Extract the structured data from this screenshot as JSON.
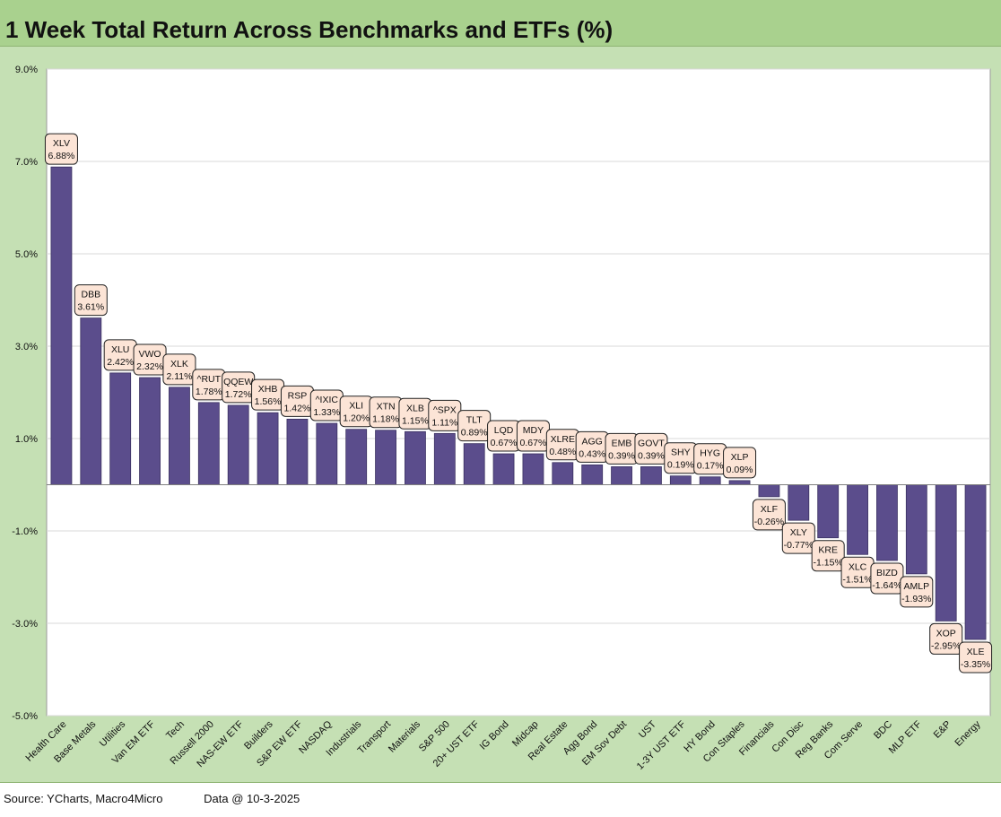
{
  "header": {
    "title": "1 Week Total Return Across Benchmarks and ETFs (%)"
  },
  "footer": {
    "source": "Source: YCharts, Macro4Micro",
    "data_as_of": "Data @ 10-3-2025"
  },
  "colors": {
    "bar": "#5b4d8c",
    "label_bg": "#fce4d6",
    "panel": "#c5e0b4",
    "title_bg": "#a9d18e"
  },
  "chart_data": {
    "type": "bar",
    "title": "1 Week Total Return Across Benchmarks and ETFs (%)",
    "xlabel": "",
    "ylabel": "",
    "ylim": [
      -5.0,
      9.0
    ],
    "ytick_values": [
      9.0,
      7.0,
      5.0,
      3.0,
      1.0,
      -1.0,
      -3.0,
      -5.0
    ],
    "ytick_labels": [
      "9.0%",
      "7.0%",
      "5.0%",
      "3.0%",
      "1.0%",
      "-1.0%",
      "-3.0%",
      "-5.0%"
    ],
    "grid": true,
    "categories": [
      "Health Care",
      "Base Metals",
      "Utilities",
      "Van EM ETF",
      "Tech",
      "Russell 2000",
      "NAS-EW ETF",
      "Builders",
      "S&P EW ETF",
      "NASDAQ",
      "Industrials",
      "Transport",
      "Materials",
      "S&P 500",
      "20+ UST ETF",
      "IG Bond",
      "Midcap",
      "Real Estate",
      "Agg Bond",
      "EM Sov Debt",
      "UST",
      "1-3Y UST ETF",
      "HY Bond",
      "Con Staples",
      "Financials",
      "Con Disc",
      "Reg Banks",
      "Com Serve",
      "BDC",
      "MLP ETF",
      "E&P",
      "Energy"
    ],
    "tickers": [
      "XLV",
      "DBB",
      "XLU",
      "VWO",
      "XLK",
      "^RUT",
      "QQEW",
      "XHB",
      "RSP",
      "^IXIC",
      "XLI",
      "XTN",
      "XLB",
      "^SPX",
      "TLT",
      "LQD",
      "MDY",
      "XLRE",
      "AGG",
      "EMB",
      "GOVT",
      "SHY",
      "HYG",
      "XLP",
      "XLF",
      "XLY",
      "KRE",
      "XLC",
      "BIZD",
      "AMLP",
      "XOP",
      "XLE"
    ],
    "values": [
      6.88,
      3.61,
      2.42,
      2.32,
      2.11,
      1.78,
      1.72,
      1.56,
      1.42,
      1.33,
      1.2,
      1.18,
      1.15,
      1.11,
      0.89,
      0.67,
      0.67,
      0.48,
      0.43,
      0.39,
      0.39,
      0.19,
      0.17,
      0.09,
      -0.26,
      -0.77,
      -1.15,
      -1.51,
      -1.64,
      -1.93,
      -2.95,
      -3.35
    ],
    "value_labels": [
      "6.88%",
      "3.61%",
      "2.42%",
      "2.32%",
      "2.11%",
      "1.78%",
      "1.72%",
      "1.56%",
      "1.42%",
      "1.33%",
      "1.20%",
      "1.18%",
      "1.15%",
      "1.11%",
      "0.89%",
      "0.67%",
      "0.67%",
      "0.48%",
      "0.43%",
      "0.39%",
      "0.39%",
      "0.19%",
      "0.17%",
      "0.09%",
      "-0.26%",
      "-0.77%",
      "-1.15%",
      "-1.51%",
      "-1.64%",
      "-1.93%",
      "-2.95%",
      "-3.35%"
    ]
  }
}
